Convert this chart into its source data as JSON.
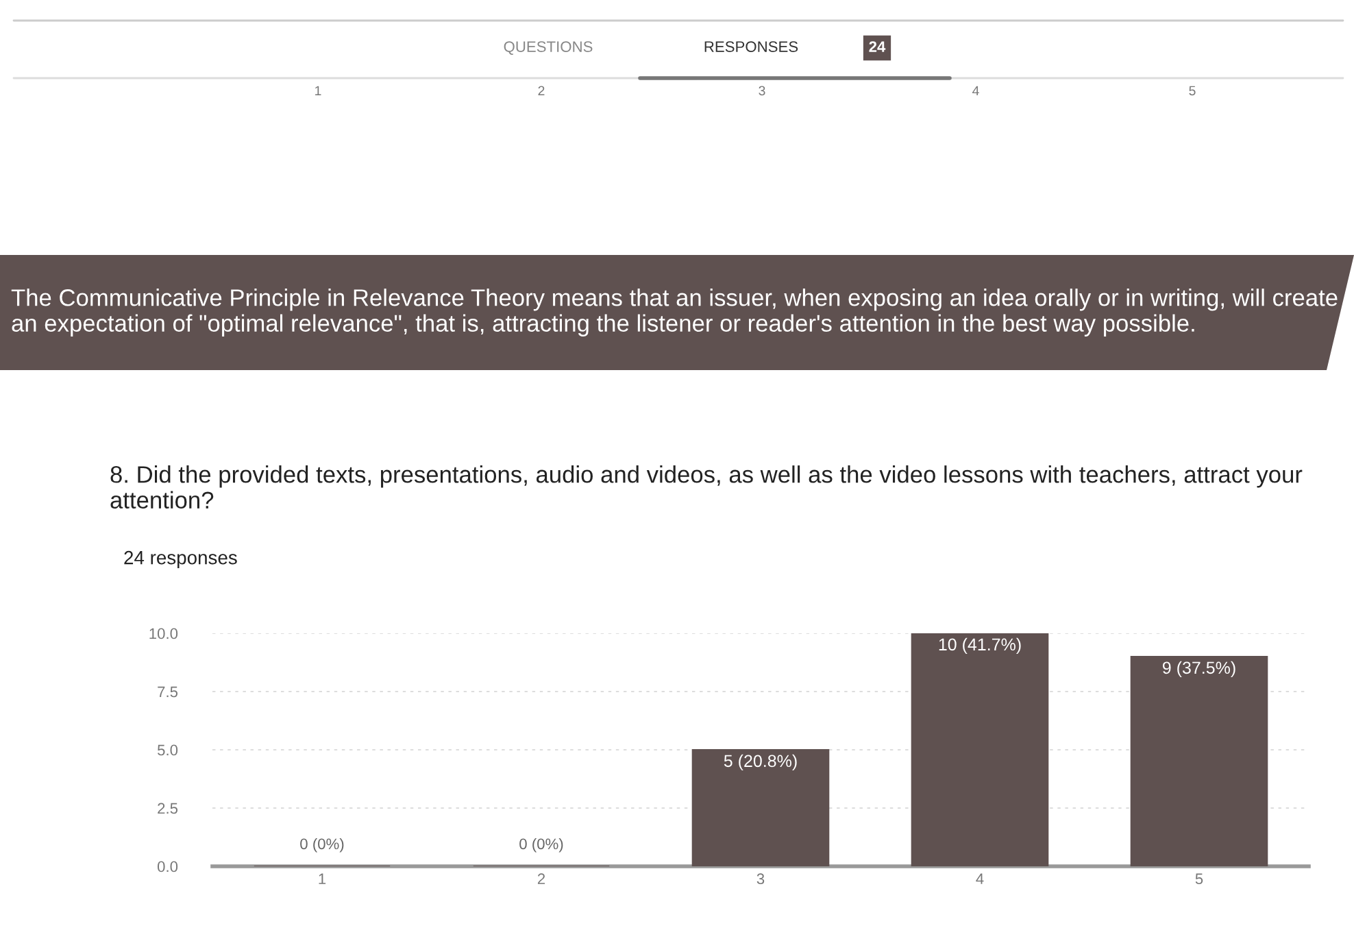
{
  "chart_data": {
    "type": "bar",
    "title": "8. Did the provided texts, presentations, audio and videos, as well as the video lessons with teachers, attract your attention?",
    "subtitle": "24 responses",
    "categories": [
      "1",
      "2",
      "3",
      "4",
      "5"
    ],
    "values": [
      0,
      0,
      5,
      10,
      9
    ],
    "value_labels": [
      "0 (0%)",
      "0 (0%)",
      "5 (20.8%)",
      "10 (41.7%)",
      "9 (37.5%)"
    ],
    "color": "#5f5150",
    "ylim": [
      0,
      10
    ],
    "yticks": [
      {
        "value": 0,
        "label": "0.0"
      },
      {
        "value": 2.5,
        "label": "2.5"
      },
      {
        "value": 5,
        "label": "5.0"
      },
      {
        "value": 7.5,
        "label": "7.5"
      },
      {
        "value": 10,
        "label": "10.0"
      }
    ],
    "grid": "y",
    "legend": false,
    "annotations": [
      "QUESTIONS",
      "RESPONSES",
      "24",
      "1",
      "2",
      "3",
      "4",
      "5",
      "The Communicative Principle in Relevance Theory means that an issuer, when exposing an idea orally or in writing, will create an expectation of \"optimal relevance\", that is, attracting the listener or reader's attention in the best way possible."
    ]
  }
}
